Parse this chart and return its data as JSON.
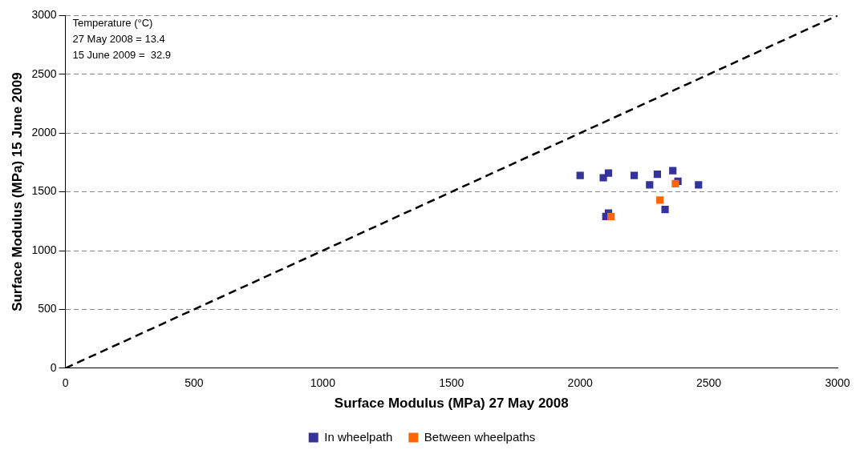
{
  "chart_data": {
    "type": "scatter",
    "xlabel": "Surface Modulus (MPa) 27 May 2008",
    "ylabel": "Surface Modulus (MPa) 15 June 2009",
    "xlim": [
      0,
      3000
    ],
    "xticks": [
      0,
      500,
      1000,
      1500,
      2000,
      2500,
      3000
    ],
    "ylim": [
      0,
      3000
    ],
    "yticks": [
      0,
      500,
      1000,
      1500,
      2000,
      2500,
      3000
    ],
    "grid": "y",
    "legend": "bottom",
    "marker": "square",
    "annotations": [
      "Temperature (°C)",
      "27 May 2008 = 13.4",
      "15 June 2009 =  32.9"
    ],
    "series": [
      {
        "name": "In wheelpath",
        "color": "#333399",
        "x": [
          2000,
          2110,
          2090,
          2210,
          2300,
          2360,
          2380,
          2270,
          2460,
          2330,
          2110,
          2100
        ],
        "values": [
          1640,
          1660,
          1620,
          1640,
          1650,
          1680,
          1590,
          1560,
          1560,
          1350,
          1320,
          1290
        ]
      },
      {
        "name": "Between wheelpaths",
        "color": "#ff6600",
        "x": [
          2370,
          2310,
          2120
        ],
        "values": [
          1570,
          1430,
          1290
        ]
      },
      {
        "type": "line",
        "color": "#000000",
        "line_style": "dashed",
        "marker": "none",
        "x": [
          0,
          3000
        ],
        "values": [
          0,
          3000
        ]
      }
    ]
  }
}
